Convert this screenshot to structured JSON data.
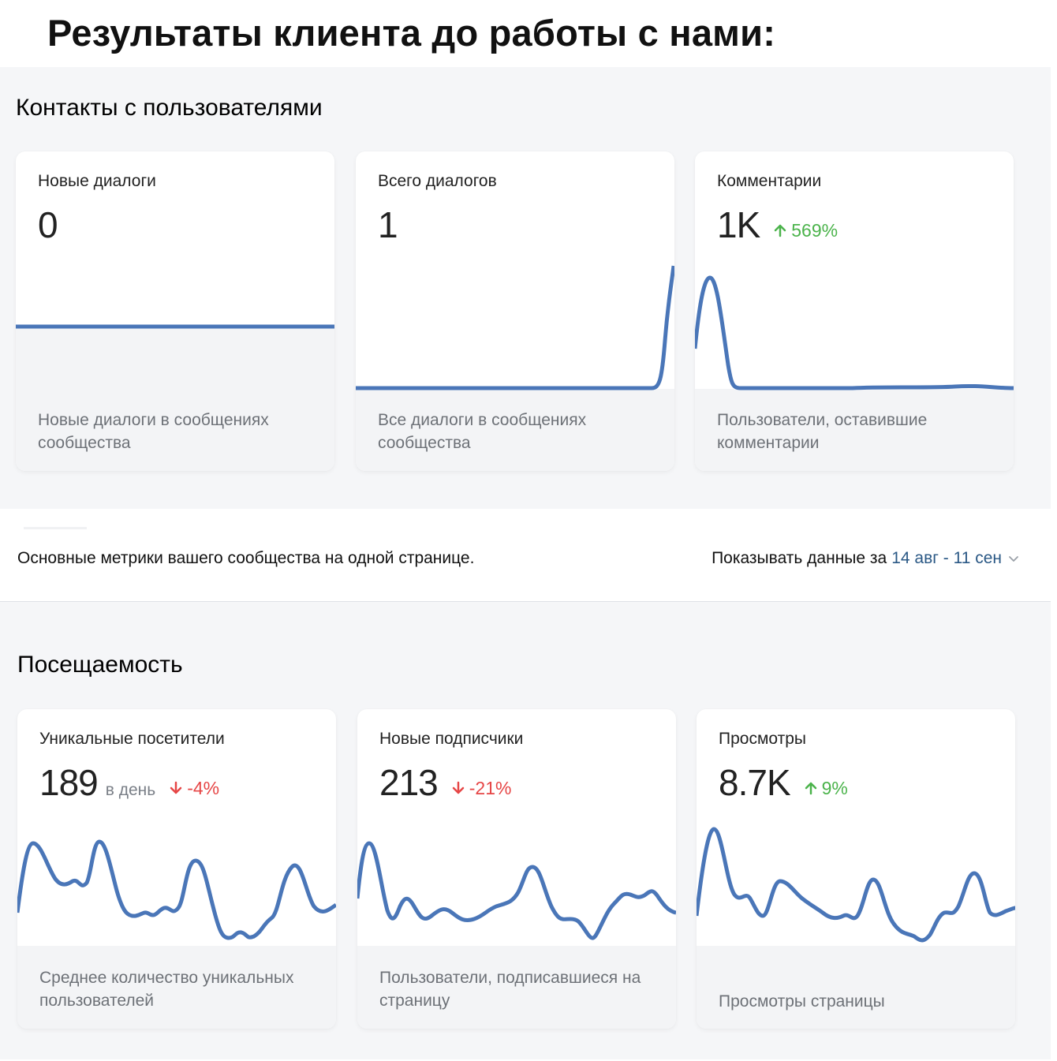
{
  "headline": "Результаты клиента до работы с нами:",
  "contacts": {
    "section_title": "Контакты с пользователями",
    "cards": [
      {
        "title": "Новые диалоги",
        "value": "0",
        "unit": "",
        "delta": "",
        "trend": "",
        "description": "Новые диалоги в сообщениях сообщества"
      },
      {
        "title": "Всего диалогов",
        "value": "1",
        "unit": "",
        "delta": "",
        "trend": "",
        "description": "Все диалоги в сообщениях сообщества"
      },
      {
        "title": "Комментарии",
        "value": "1K",
        "unit": "",
        "delta": "569%",
        "trend": "up",
        "description": "Пользователи, оставившие комментарии"
      }
    ]
  },
  "metrics_caption": "Основные метрики вашего сообщества на одной странице.",
  "period": {
    "label": "Показывать данные за",
    "range": "14 авг - 11 сен"
  },
  "attendance": {
    "section_title": "Посещаемость",
    "cards": [
      {
        "title": "Уникальные посетители",
        "value": "189",
        "unit": "в день",
        "delta": "-4%",
        "trend": "down",
        "description": "Среднее количество уникальных пользователей"
      },
      {
        "title": "Новые подписчики",
        "value": "213",
        "unit": "",
        "delta": "-21%",
        "trend": "down",
        "description": "Пользователи, подписавшиеся на страницу"
      },
      {
        "title": "Просмотры",
        "value": "8.7K",
        "unit": "",
        "delta": "9%",
        "trend": "up",
        "description": "Просмотры страницы"
      }
    ]
  },
  "colors": {
    "line": "#4a76b8",
    "up": "#4bb34b",
    "down": "#e64646",
    "link": "#2a5885"
  }
}
